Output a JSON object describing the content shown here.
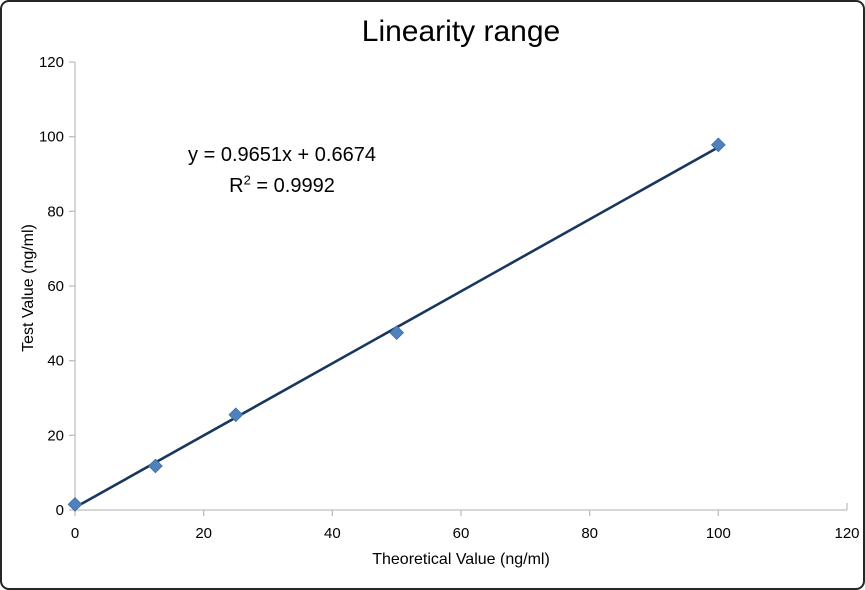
{
  "chart_data": {
    "type": "scatter",
    "title": "Linearity range",
    "xlabel": "Theoretical Value (ng/ml)",
    "ylabel": "Test Value (ng/ml)",
    "xlim": [
      0,
      120
    ],
    "ylim": [
      0,
      120
    ],
    "xticks": [
      0,
      20,
      40,
      60,
      80,
      100,
      120
    ],
    "yticks": [
      0,
      20,
      40,
      60,
      80,
      100,
      120
    ],
    "grid": false,
    "legend": "none",
    "points": [
      {
        "x": 0,
        "y": 1.5
      },
      {
        "x": 12.5,
        "y": 11.8
      },
      {
        "x": 25,
        "y": 25.5
      },
      {
        "x": 50,
        "y": 47.5
      },
      {
        "x": 100,
        "y": 97.8
      }
    ],
    "trendline": {
      "slope": 0.9651,
      "intercept": 0.6674,
      "x_start": 0,
      "x_end": 100,
      "equation": "y = 0.9651x + 0.6674",
      "r_squared": 0.9992,
      "r_label": "R",
      "r_sup": "2",
      "r_value": " = 0.9992"
    },
    "colors": {
      "marker": "#4F81BD",
      "marker_edge": "#3D6EA5",
      "trendline": "#17375E",
      "axis": "#BFBFBF",
      "text": "#000000"
    }
  }
}
